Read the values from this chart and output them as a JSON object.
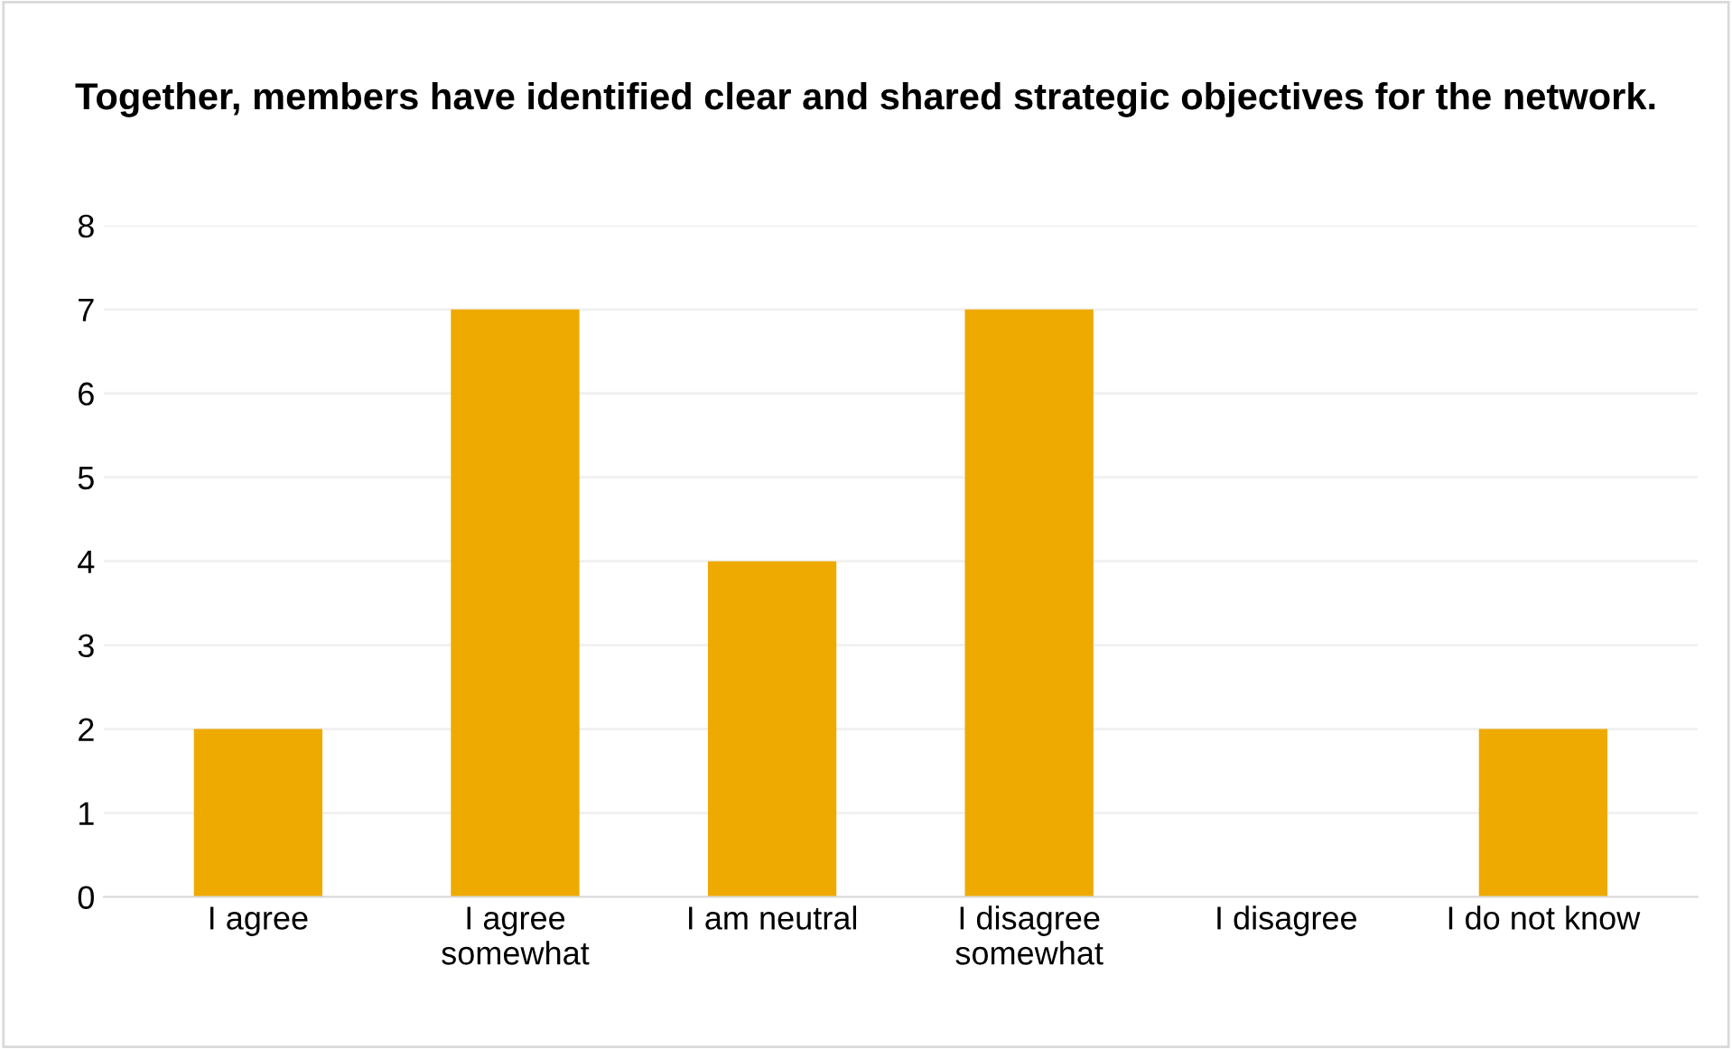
{
  "chart_data": {
    "type": "bar",
    "title": "Together, members have identified clear and shared strategic objectives for the network.",
    "categories": [
      "I agree",
      "I agree somewhat",
      "I am neutral",
      "I disagree somewhat",
      "I disagree",
      "I do not know"
    ],
    "values": [
      2,
      7,
      4,
      7,
      0,
      2
    ],
    "color": "#eeaa00",
    "ylim": [
      0,
      8
    ],
    "yticks": [
      0,
      1,
      2,
      3,
      4,
      5,
      6,
      7,
      8
    ],
    "grid": "y"
  }
}
